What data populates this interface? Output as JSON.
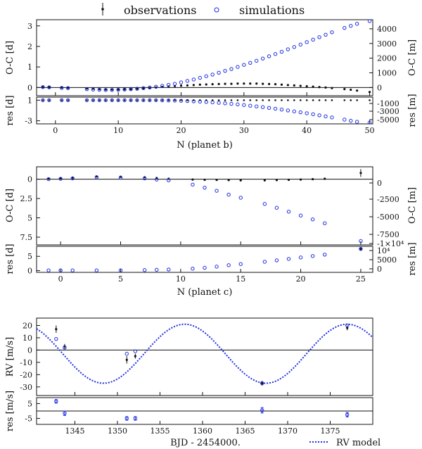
{
  "legend": {
    "observations": "observations",
    "simulations": "simulations",
    "rv_model": "RV model"
  },
  "colors": {
    "obs": "#111111",
    "sim": "#1f2ee0",
    "axis": "#111111"
  },
  "chart_data": [
    {
      "type": "scatter",
      "name": "oc-planet-b",
      "xlabel": "N (planet b)",
      "ylabel_left": "O-C [d]",
      "ylabel_right": "O-C [m]",
      "xlim": [
        -3,
        50.5
      ],
      "ylim": [
        -0.4,
        3.3
      ],
      "yticks": [
        0,
        1,
        2,
        3
      ],
      "y2ticks": [
        "0",
        "1000",
        "2000",
        "3000",
        "4000"
      ],
      "xticks": [
        0,
        10,
        20,
        30,
        40,
        50
      ],
      "observations": {
        "x": [
          -2,
          -1,
          1,
          2,
          5,
          6,
          7,
          8,
          9,
          10,
          11,
          12,
          13,
          14,
          15,
          16,
          17,
          18,
          19,
          20,
          21,
          22,
          23,
          24,
          25,
          26,
          27,
          28,
          29,
          30,
          31,
          32,
          33,
          34,
          35,
          36,
          37,
          38,
          39,
          40,
          41,
          42,
          43,
          44,
          46,
          47,
          48,
          50
        ],
        "y": [
          0.02,
          0.01,
          0.0,
          -0.02,
          -0.05,
          -0.06,
          -0.08,
          -0.1,
          -0.1,
          -0.1,
          -0.09,
          -0.08,
          -0.06,
          -0.04,
          -0.02,
          0.0,
          0.03,
          0.05,
          0.07,
          0.09,
          0.1,
          0.12,
          0.14,
          0.15,
          0.16,
          0.17,
          0.18,
          0.18,
          0.19,
          0.19,
          0.19,
          0.19,
          0.18,
          0.17,
          0.16,
          0.14,
          0.12,
          0.1,
          0.08,
          0.06,
          0.04,
          0.02,
          0.0,
          -0.03,
          -0.08,
          -0.11,
          -0.15,
          -0.22
        ]
      },
      "simulations": {
        "x": [
          -2,
          -1,
          1,
          2,
          5,
          6,
          7,
          8,
          9,
          10,
          11,
          12,
          13,
          14,
          15,
          16,
          17,
          18,
          19,
          20,
          21,
          22,
          23,
          24,
          25,
          26,
          27,
          28,
          29,
          30,
          31,
          32,
          33,
          34,
          35,
          36,
          37,
          38,
          39,
          40,
          41,
          42,
          43,
          44,
          46,
          47,
          48,
          50
        ],
        "y": [
          0.02,
          0.01,
          -0.02,
          -0.03,
          -0.08,
          -0.1,
          -0.11,
          -0.12,
          -0.12,
          -0.11,
          -0.1,
          -0.08,
          -0.06,
          -0.03,
          0.0,
          0.04,
          0.08,
          0.13,
          0.18,
          0.25,
          0.32,
          0.39,
          0.47,
          0.55,
          0.63,
          0.72,
          0.81,
          0.9,
          1.0,
          1.1,
          1.2,
          1.3,
          1.41,
          1.52,
          1.63,
          1.74,
          1.86,
          1.97,
          2.09,
          2.21,
          2.33,
          2.45,
          2.57,
          2.69,
          2.9,
          3.0,
          3.1,
          3.3
        ]
      }
    },
    {
      "type": "scatter",
      "name": "res-planet-b",
      "ylabel_left": "res [d]",
      "ylabel_right": "res [m]",
      "ylim": [
        -3.6,
        1.6
      ],
      "yticks": [
        -3,
        1
      ],
      "y2ticks": [
        "-1000",
        "-3000",
        "-5000"
      ],
      "simulations": {
        "x": [
          -2,
          -1,
          1,
          2,
          5,
          6,
          7,
          8,
          9,
          10,
          11,
          12,
          13,
          14,
          15,
          16,
          17,
          18,
          19,
          20,
          21,
          22,
          23,
          24,
          25,
          26,
          27,
          28,
          29,
          30,
          31,
          32,
          33,
          34,
          35,
          36,
          37,
          38,
          39,
          40,
          41,
          42,
          43,
          44,
          46,
          47,
          48,
          50
        ],
        "y": [
          1.0,
          1.0,
          1.0,
          1.0,
          1.0,
          1.0,
          1.0,
          1.0,
          1.0,
          1.0,
          1.0,
          1.0,
          1.0,
          1.0,
          1.0,
          1.0,
          0.98,
          0.96,
          0.93,
          0.89,
          0.84,
          0.79,
          0.73,
          0.66,
          0.58,
          0.49,
          0.39,
          0.29,
          0.18,
          0.06,
          -0.07,
          -0.21,
          -0.35,
          -0.5,
          -0.66,
          -0.82,
          -0.99,
          -1.17,
          -1.35,
          -1.54,
          -1.73,
          -1.93,
          -2.14,
          -2.35,
          -2.78,
          -3.0,
          -3.2,
          -3.5
        ]
      }
    },
    {
      "type": "scatter",
      "name": "oc-planet-c",
      "xlabel": "N (planet c)",
      "ylabel_left": "O-C [d]",
      "ylabel_right": "O-C [m]",
      "xlim": [
        -2,
        26
      ],
      "ylim": [
        -8.5,
        1.6
      ],
      "yticks": [
        "0",
        "2.5",
        "5",
        "7.5"
      ],
      "ytick_vals": [
        0,
        -2.5,
        -5,
        -7.5
      ],
      "y2ticks": [
        "0",
        "-2500",
        "-5000",
        "-7500",
        "-1×10⁴"
      ],
      "xticks": [
        0,
        5,
        10,
        15,
        20,
        25
      ],
      "observations": {
        "x": [
          -1,
          0,
          1,
          3,
          5,
          7,
          8,
          9,
          11,
          12,
          13,
          14,
          15,
          17,
          18,
          19,
          20,
          21,
          22,
          25
        ],
        "y": [
          0.05,
          0.1,
          0.2,
          0.35,
          0.3,
          0.25,
          0.15,
          0.05,
          -0.05,
          -0.08,
          -0.1,
          -0.12,
          -0.15,
          -0.15,
          -0.12,
          -0.08,
          -0.05,
          0.0,
          0.05,
          0.8
        ]
      },
      "simulations": {
        "x": [
          -1,
          0,
          1,
          3,
          5,
          7,
          8,
          9,
          11,
          12,
          13,
          14,
          15,
          17,
          18,
          19,
          20,
          21,
          22,
          25
        ],
        "y": [
          0.0,
          0.05,
          0.1,
          0.25,
          0.2,
          0.1,
          -0.05,
          -0.15,
          -0.7,
          -1.1,
          -1.5,
          -2.0,
          -2.4,
          -3.2,
          -3.7,
          -4.2,
          -4.7,
          -5.2,
          -5.7,
          -8.0
        ]
      }
    },
    {
      "type": "scatter",
      "name": "res-planet-c",
      "ylabel_left": "res [d]",
      "ylabel_right": "res [m]",
      "ylim": [
        -0.6,
        8.5
      ],
      "y2ticks": [
        "10⁴",
        "5000",
        "0"
      ],
      "observations": {
        "x": [
          25
        ],
        "y": [
          7.6
        ]
      },
      "simulations": {
        "x": [
          -1,
          0,
          1,
          3,
          5,
          7,
          8,
          9,
          11,
          12,
          13,
          14,
          15,
          17,
          18,
          19,
          20,
          21,
          22,
          25
        ],
        "y": [
          0.1,
          0.1,
          0.1,
          0.1,
          0.1,
          0.2,
          0.3,
          0.4,
          0.7,
          1.0,
          1.4,
          1.9,
          2.3,
          3.1,
          3.6,
          4.1,
          4.6,
          5.1,
          5.6,
          7.6
        ]
      }
    },
    {
      "type": "line",
      "name": "rv",
      "ylabel": "RV [m/s]",
      "xlabel": "BJD - 2454000.",
      "xlim": [
        1340.5,
        1380
      ],
      "ylim": [
        -37,
        26
      ],
      "yticks": [
        20,
        10,
        0,
        -10,
        -20,
        -30
      ],
      "xticks": [
        1345,
        1350,
        1355,
        1360,
        1365,
        1370,
        1375
      ],
      "model": {
        "offset": 21.5,
        "amplitude": 24.0,
        "period": 19.1,
        "peak": 1357.9
      },
      "observations": {
        "x": [
          1342.8,
          1343.8,
          1351.1,
          1352.1,
          1367.0,
          1377.0
        ],
        "y": [
          17,
          3,
          -8,
          -5,
          -27,
          18
        ],
        "err": [
          3,
          2,
          3,
          2,
          2,
          2
        ]
      },
      "simulations": {
        "x": [
          1342.8,
          1343.8,
          1351.1,
          1352.1,
          1367.0,
          1377.0
        ],
        "y": [
          9,
          2,
          -3,
          -1,
          -27,
          20
        ]
      }
    },
    {
      "type": "scatter",
      "name": "res-rv",
      "ylabel": "res [m/s]",
      "ylim": [
        -9,
        9
      ],
      "yticks": [
        5,
        -5
      ],
      "observations": {
        "x": [
          1342.8,
          1343.8,
          1351.1,
          1352.1,
          1367.0,
          1377.0
        ],
        "y": [
          6.5,
          -1.5,
          -5.0,
          -5.0,
          0.5,
          -2.5
        ],
        "err": [
          1.2,
          1.5,
          1.2,
          1.2,
          1.8,
          1.5
        ]
      }
    }
  ]
}
